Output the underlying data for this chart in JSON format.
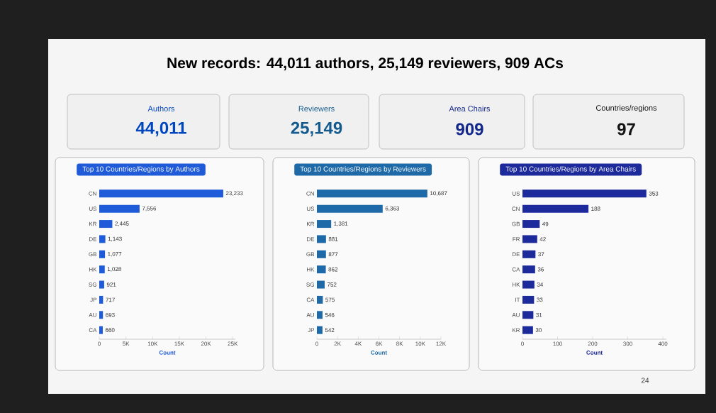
{
  "chart_data": [
    {
      "type": "other",
      "title": "New records: 44,011 authors, 25,149 reviewers, 909 ACs",
      "annotations": [
        "Authors",
        "44,011",
        "Reviewers",
        "25,149",
        "Area Chairs",
        "909",
        "Countries/regions",
        "97",
        "24"
      ]
    },
    {
      "type": "bar",
      "orientation": "horizontal",
      "title": "Top 10 Countries/Regions by Authors",
      "xlabel": "Count",
      "color": "#1f5bd8",
      "categories": [
        "CN",
        "US",
        "KR",
        "DE",
        "GB",
        "HK",
        "SG",
        "JP",
        "AU",
        "CA"
      ],
      "values": [
        23233,
        7556,
        2445,
        1143,
        1077,
        1028,
        921,
        717,
        693,
        660
      ],
      "value_labels": [
        "23,233",
        "7,556",
        "2,445",
        "1,143",
        "1,077",
        "1,028",
        "921",
        "717",
        "693",
        "660"
      ],
      "xlim": [
        0,
        25500
      ],
      "xticks": [
        0,
        {
          "value": 5000,
          "label": "5K"
        },
        {
          "value": 10000,
          "label": "10K"
        },
        {
          "value": 15000,
          "label": "15K"
        },
        {
          "value": 20000,
          "label": "20K"
        },
        {
          "value": 25000,
          "label": "25K"
        }
      ]
    },
    {
      "type": "bar",
      "orientation": "horizontal",
      "title": "Top 10 Countries/Regions by Reviewers",
      "xlabel": "Count",
      "color": "#1e6aa8",
      "categories": [
        "CN",
        "US",
        "KR",
        "DE",
        "GB",
        "HK",
        "SG",
        "CA",
        "AU",
        "JP"
      ],
      "values": [
        10687,
        6363,
        1381,
        881,
        877,
        862,
        752,
        575,
        546,
        542
      ],
      "value_labels": [
        "10,687",
        "6,363",
        "1,381",
        "881",
        "877",
        "862",
        "752",
        "575",
        "546",
        "542"
      ],
      "xlim": [
        0,
        12000
      ],
      "xticks": [
        0,
        {
          "value": 2000,
          "label": "2K"
        },
        {
          "value": 4000,
          "label": "4K"
        },
        {
          "value": 6000,
          "label": "6K"
        },
        {
          "value": 8000,
          "label": "8K"
        },
        {
          "value": 10000,
          "label": "10K"
        },
        {
          "value": 12000,
          "label": "12K"
        }
      ]
    },
    {
      "type": "bar",
      "orientation": "horizontal",
      "title": "Top 10 Countries/Regions by Area Chairs",
      "xlabel": "Count",
      "color": "#1c2a9c",
      "categories": [
        "US",
        "CN",
        "GB",
        "FR",
        "DE",
        "CA",
        "HK",
        "IT",
        "AU",
        "KR"
      ],
      "values": [
        353,
        188,
        49,
        42,
        37,
        36,
        34,
        33,
        31,
        30
      ],
      "value_labels": [
        "353",
        "188",
        "49",
        "42",
        "37",
        "36",
        "34",
        "33",
        "31",
        "30"
      ],
      "xlim": [
        0,
        410
      ],
      "xticks": [
        0,
        100,
        200,
        300,
        400
      ]
    }
  ]
}
